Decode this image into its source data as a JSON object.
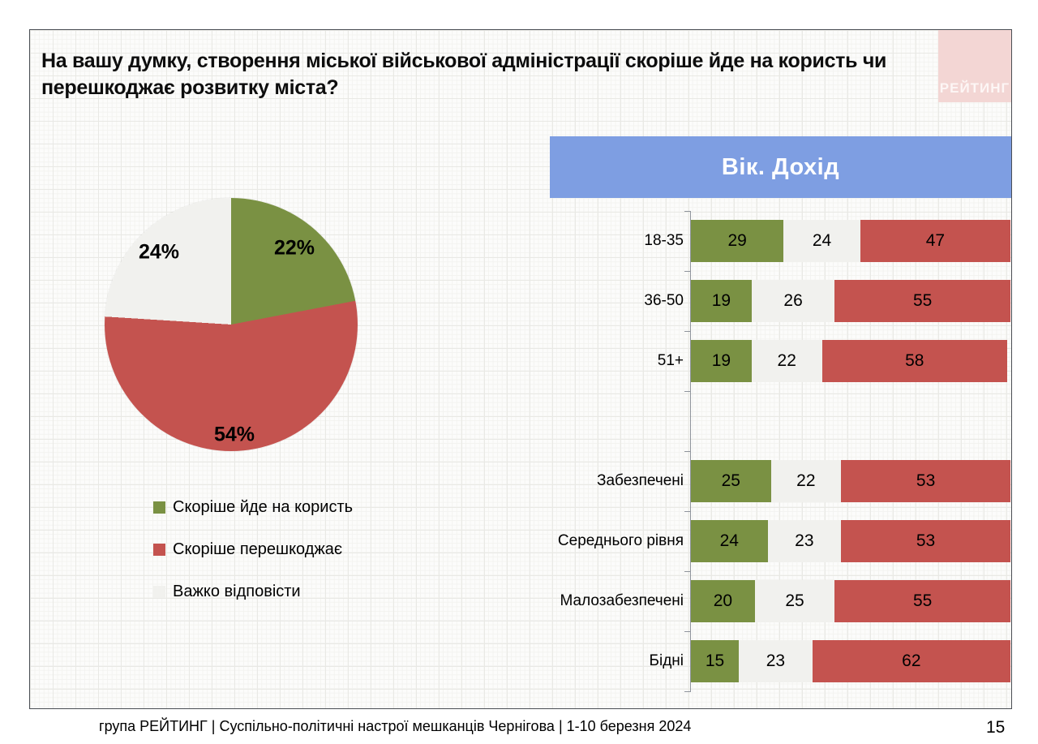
{
  "header": {
    "title": "На вашу думку,  створення міської військової адміністрації скоріше йде на користь чи перешкоджає розвитку міста?",
    "logo_text": "РЕЙТИНГ"
  },
  "panel": {
    "header_label": "Вік. Дохід"
  },
  "colors": {
    "positive_green": "#7a9143",
    "negative_red": "#c4534f",
    "neutral_white": "#f1f1ee",
    "panel_blue": "#7e9ee2",
    "logo_pink": "#f3d6d4"
  },
  "chart_data": [
    {
      "type": "pie",
      "labels": [
        "Скоріше йде на користь",
        "Скоріше перешкоджає",
        "Важко відповісти"
      ],
      "values": [
        22,
        54,
        24
      ],
      "value_labels": [
        "22%",
        "54%",
        "24%"
      ],
      "colors": [
        "#7a9143",
        "#c4534f",
        "#f1f1ee"
      ],
      "start_angle_deg": 0,
      "direction": "clockwise",
      "legend_position": "below"
    },
    {
      "type": "bar",
      "subtype": "stacked-horizontal",
      "title": "Вік. Дохід",
      "categories": [
        "18-35",
        "36-50",
        "51+",
        "Забезпечені",
        "Середнього рівня",
        "Малозабезпечені",
        "Бідні"
      ],
      "slots": [
        0,
        1,
        2,
        4,
        5,
        6,
        7
      ],
      "series": [
        {
          "name": "Скоріше йде на користь",
          "color": "#7a9143",
          "values": [
            29,
            19,
            19,
            25,
            24,
            20,
            15
          ]
        },
        {
          "name": "Важко відповісти",
          "color": "#f1f1ee",
          "values": [
            24,
            26,
            22,
            22,
            23,
            25,
            23
          ]
        },
        {
          "name": "Скоріше перешкоджає",
          "color": "#c4534f",
          "values": [
            47,
            55,
            58,
            53,
            53,
            55,
            62
          ]
        }
      ],
      "xlim": [
        0,
        100
      ],
      "grid": false,
      "value_labels_shown": true
    }
  ],
  "footer": {
    "caption": "група РЕЙТИНГ  | Суспільно-політичні  настрої мешканців Чернігова | 1-10 березня 2024",
    "page_number": "15"
  }
}
